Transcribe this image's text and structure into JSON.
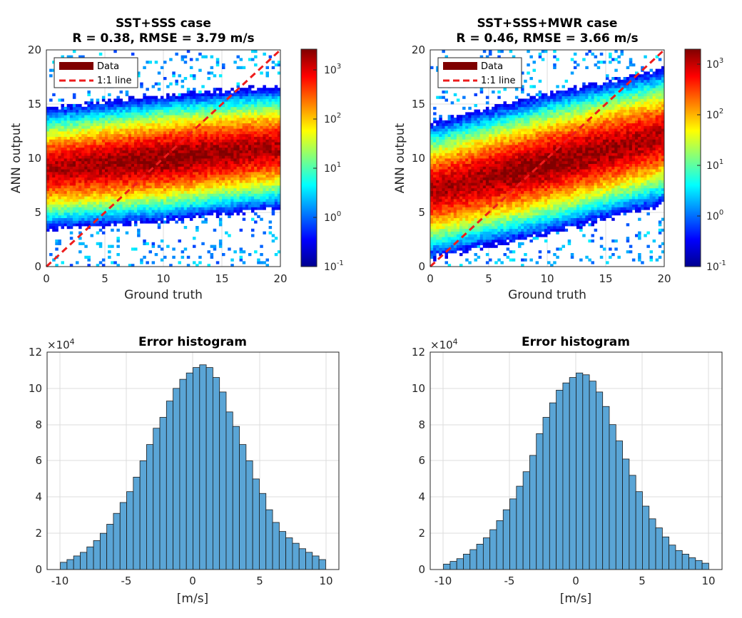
{
  "chart_data": [
    {
      "type": "heatmap",
      "title": "SST+SSS case",
      "subtitle": "R = 0.38, RMSE = 3.79 m/s",
      "xlabel": "Ground truth",
      "ylabel": "ANN output",
      "xlim": [
        0,
        20
      ],
      "ylim": [
        0,
        20
      ],
      "xticks": [
        "0",
        "5",
        "10",
        "15",
        "20"
      ],
      "yticks": [
        "0",
        "5",
        "10",
        "15",
        "20"
      ],
      "legend": [
        "Data",
        "1:1 line"
      ],
      "legend_placement": "top-left",
      "colorbar": {
        "scale": "log",
        "min_exp": -1,
        "max_exp": 3.4,
        "tick_exponents": [
          "-1",
          "0",
          "1",
          "2",
          "3"
        ],
        "base": "10"
      },
      "density": {
        "center_y": 10,
        "spread_y": 2.3,
        "slope": 0.1,
        "band_y": [
          3.5,
          15
        ]
      },
      "grid": true
    },
    {
      "type": "heatmap",
      "title": "SST+SSS+MWR case",
      "subtitle": "R = 0.46, RMSE = 3.66 m/s",
      "xlabel": "Ground truth",
      "ylabel": "ANN output",
      "xlim": [
        0,
        20
      ],
      "ylim": [
        0,
        20
      ],
      "xticks": [
        "0",
        "5",
        "10",
        "15",
        "20"
      ],
      "yticks": [
        "0",
        "5",
        "10",
        "15",
        "20"
      ],
      "legend": [
        "Data",
        "1:1 line"
      ],
      "legend_placement": "top-left",
      "colorbar": {
        "scale": "log",
        "min_exp": -1,
        "max_exp": 3.3,
        "tick_exponents": [
          "-1",
          "0",
          "1",
          "2",
          "3"
        ],
        "base": "10"
      },
      "density": {
        "center_y": 9.5,
        "spread_y": 2.6,
        "slope": 0.25,
        "band_y": [
          1.5,
          19
        ]
      },
      "grid": true
    },
    {
      "type": "bar",
      "title": "Error histogram",
      "xlabel": "[m/s]",
      "ylabel": "",
      "y_multiplier": "×10",
      "y_multiplier_exp": "4",
      "xlim": [
        -11,
        11
      ],
      "ylim": [
        0,
        12
      ],
      "xticks": [
        "-10",
        "-5",
        "0",
        "5",
        "10"
      ],
      "yticks": [
        "0",
        "2",
        "4",
        "6",
        "8",
        "10",
        "12"
      ],
      "bin_start": -10,
      "bin_width": 0.5,
      "values": [
        0.4,
        0.55,
        0.75,
        0.95,
        1.25,
        1.6,
        2.0,
        2.5,
        3.1,
        3.7,
        4.3,
        5.1,
        6.0,
        6.9,
        7.8,
        8.4,
        9.3,
        10.0,
        10.5,
        10.85,
        11.15,
        11.3,
        11.15,
        10.6,
        9.8,
        8.7,
        7.9,
        6.9,
        6.0,
        5.0,
        4.2,
        3.3,
        2.6,
        2.1,
        1.75,
        1.45,
        1.15,
        0.95,
        0.75,
        0.55
      ],
      "grid": true
    },
    {
      "type": "bar",
      "title": "Error histogram",
      "xlabel": "[m/s]",
      "ylabel": "",
      "y_multiplier": "×10",
      "y_multiplier_exp": "4",
      "xlim": [
        -11,
        11
      ],
      "ylim": [
        0,
        12
      ],
      "xticks": [
        "-10",
        "-5",
        "0",
        "5",
        "10"
      ],
      "yticks": [
        "0",
        "2",
        "4",
        "6",
        "8",
        "10",
        "12"
      ],
      "bin_start": -10,
      "bin_width": 0.5,
      "values": [
        0.3,
        0.45,
        0.6,
        0.85,
        1.1,
        1.4,
        1.75,
        2.2,
        2.7,
        3.3,
        3.9,
        4.6,
        5.4,
        6.3,
        7.5,
        8.4,
        9.2,
        9.9,
        10.3,
        10.6,
        10.85,
        10.75,
        10.4,
        9.8,
        9.0,
        8.0,
        7.1,
        6.1,
        5.2,
        4.3,
        3.5,
        2.8,
        2.3,
        1.8,
        1.35,
        1.05,
        0.85,
        0.65,
        0.5,
        0.35
      ],
      "grid": true
    }
  ]
}
